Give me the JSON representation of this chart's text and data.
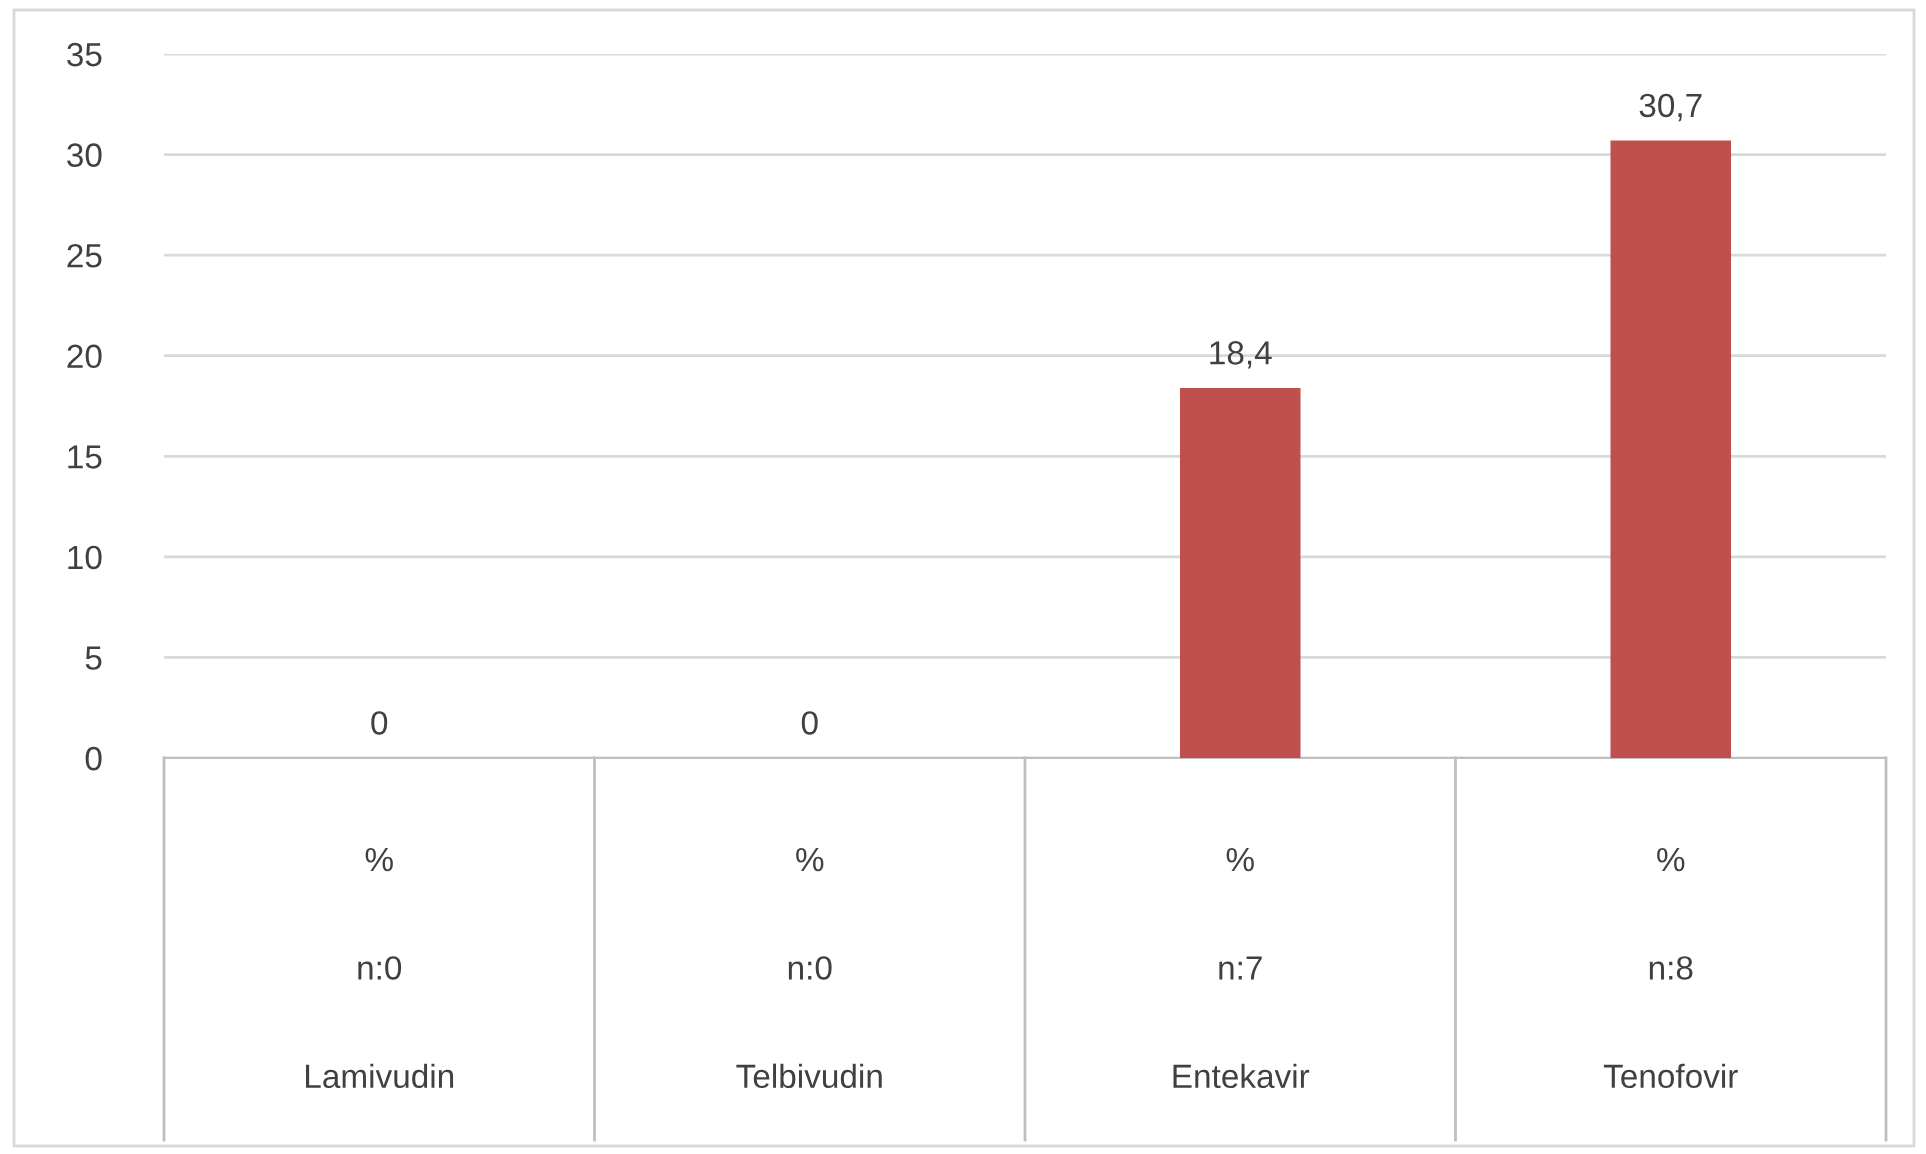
{
  "chart_data": {
    "type": "bar",
    "categories": [
      "%\nn:0\nLamivudin",
      "%\nn:0\nTelbivudin",
      "%\nn:7\nEntekavir",
      "%\nn:8\nTenofovir"
    ],
    "values": [
      0,
      0,
      18.4,
      30.7
    ],
    "value_labels": [
      "0",
      "0",
      "18,4",
      "30,7"
    ],
    "color": "#c0504d",
    "ylim": [
      0,
      35
    ],
    "yticks": [
      0,
      5,
      10,
      15,
      20,
      25,
      30,
      35
    ],
    "grid": "y",
    "legend": false
  }
}
